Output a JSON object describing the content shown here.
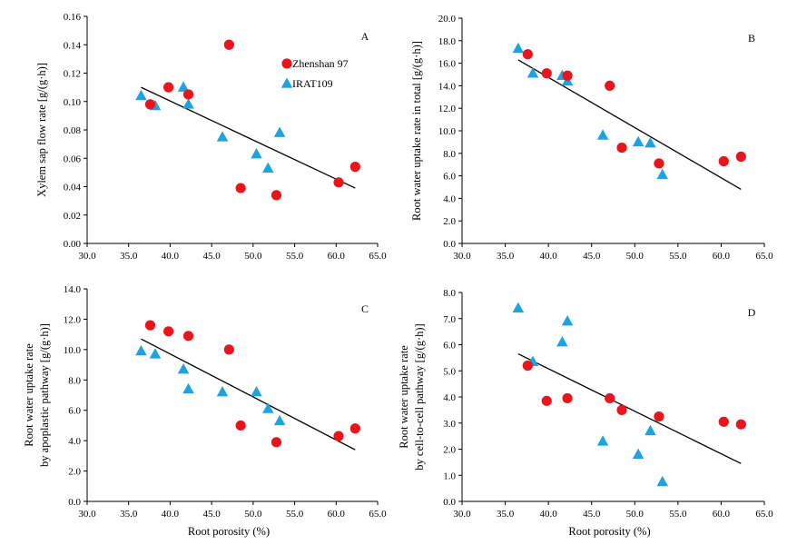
{
  "legend": [
    {
      "name": "Zhenshan 97",
      "marker": "circle",
      "color": "#e8161c"
    },
    {
      "name": "IRAT109",
      "marker": "triangle",
      "color": "#1fa3e0"
    }
  ],
  "chart_data": [
    {
      "type": "scatter",
      "panel_label": "A",
      "xlabel": "",
      "ylabel": [
        "Xylem sap flow rate [g/(g·h)]"
      ],
      "xlim": [
        30,
        65
      ],
      "ylim": [
        0,
        0.16
      ],
      "xticks": [
        "30.0",
        "35.0",
        "40.0",
        "45.0",
        "50.0",
        "55.0",
        "60.0",
        "65.0"
      ],
      "yticks": [
        "0.00",
        "0.02",
        "0.04",
        "0.06",
        "0.08",
        "0.10",
        "0.12",
        "0.14",
        "0.16"
      ],
      "trendline": [
        [
          36.5,
          0.11
        ],
        [
          62.3,
          0.039
        ]
      ],
      "legend_placement": "top-right",
      "series": [
        {
          "name": "Zhenshan 97",
          "points": [
            [
              37.6,
              0.098
            ],
            [
              39.8,
              0.11
            ],
            [
              42.2,
              0.105
            ],
            [
              47.1,
              0.14
            ],
            [
              48.5,
              0.039
            ],
            [
              52.8,
              0.034
            ],
            [
              60.3,
              0.043
            ],
            [
              62.3,
              0.054
            ]
          ]
        },
        {
          "name": "IRAT109",
          "points": [
            [
              36.5,
              0.104
            ],
            [
              38.2,
              0.097
            ],
            [
              41.6,
              0.11
            ],
            [
              42.2,
              0.098
            ],
            [
              46.3,
              0.075
            ],
            [
              50.4,
              0.063
            ],
            [
              51.8,
              0.053
            ],
            [
              53.2,
              0.078
            ]
          ]
        }
      ]
    },
    {
      "type": "scatter",
      "panel_label": "B",
      "xlabel": "",
      "ylabel": [
        "Root water uptake rate in total [g/(g·h)]"
      ],
      "xlim": [
        30,
        65
      ],
      "ylim": [
        0,
        20
      ],
      "xticks": [
        "30.0",
        "35.0",
        "40.0",
        "45.0",
        "50.0",
        "55.0",
        "60.0",
        "65.0"
      ],
      "yticks": [
        "0.0",
        "2.0",
        "4.0",
        "6.0",
        "8.0",
        "10.0",
        "12.0",
        "14.0",
        "16.0",
        "18.0",
        "20.0"
      ],
      "trendline": [
        [
          36.5,
          16.3
        ],
        [
          62.3,
          4.8
        ]
      ],
      "series": [
        {
          "name": "Zhenshan 97",
          "points": [
            [
              37.6,
              16.8
            ],
            [
              39.8,
              15.1
            ],
            [
              42.2,
              14.9
            ],
            [
              47.1,
              14.0
            ],
            [
              48.5,
              8.5
            ],
            [
              52.8,
              7.1
            ],
            [
              60.3,
              7.3
            ],
            [
              62.3,
              7.7
            ]
          ]
        },
        {
          "name": "IRAT109",
          "points": [
            [
              36.5,
              17.3
            ],
            [
              38.2,
              15.1
            ],
            [
              41.6,
              14.9
            ],
            [
              42.2,
              14.4
            ],
            [
              46.3,
              9.6
            ],
            [
              50.4,
              9.0
            ],
            [
              51.8,
              8.9
            ],
            [
              53.2,
              6.1
            ]
          ]
        }
      ]
    },
    {
      "type": "scatter",
      "panel_label": "C",
      "xlabel": "Root porosity (%)",
      "ylabel": [
        "Root water uptake rate",
        "by apoplastic pathway [g/(g·h)]"
      ],
      "xlim": [
        30,
        65
      ],
      "ylim": [
        0,
        14
      ],
      "xticks": [
        "30.0",
        "35.0",
        "40.0",
        "45.0",
        "50.0",
        "55.0",
        "60.0",
        "65.0"
      ],
      "yticks": [
        "0.0",
        "2.0",
        "4.0",
        "6.0",
        "8.0",
        "10.0",
        "12.0",
        "14.0"
      ],
      "trendline": [
        [
          36.5,
          10.7
        ],
        [
          62.3,
          3.4
        ]
      ],
      "series": [
        {
          "name": "Zhenshan 97",
          "points": [
            [
              37.6,
              11.6
            ],
            [
              39.8,
              11.2
            ],
            [
              42.2,
              10.9
            ],
            [
              47.1,
              10.0
            ],
            [
              48.5,
              5.0
            ],
            [
              52.8,
              3.9
            ],
            [
              60.3,
              4.3
            ],
            [
              62.3,
              4.8
            ]
          ]
        },
        {
          "name": "IRAT109",
          "points": [
            [
              36.5,
              9.9
            ],
            [
              38.2,
              9.7
            ],
            [
              41.6,
              8.7
            ],
            [
              42.2,
              7.4
            ],
            [
              46.3,
              7.2
            ],
            [
              50.4,
              7.2
            ],
            [
              51.8,
              6.1
            ],
            [
              53.2,
              5.3
            ]
          ]
        }
      ]
    },
    {
      "type": "scatter",
      "panel_label": "D",
      "xlabel": "Root porosity (%)",
      "ylabel": [
        "Root water uptake rate",
        "by cell-to-cell pathway [g/(g·h)]"
      ],
      "xlim": [
        30,
        65
      ],
      "ylim": [
        0,
        8
      ],
      "xticks": [
        "30.0",
        "35.0",
        "40.0",
        "45.0",
        "50.0",
        "55.0",
        "60.0",
        "65.0"
      ],
      "yticks": [
        "0.0",
        "1.0",
        "2.0",
        "3.0",
        "4.0",
        "5.0",
        "6.0",
        "7.0",
        "8.0"
      ],
      "trendline": [
        [
          36.5,
          5.65
        ],
        [
          62.3,
          1.45
        ]
      ],
      "series": [
        {
          "name": "Zhenshan 97",
          "points": [
            [
              37.6,
              5.2
            ],
            [
              39.8,
              3.85
            ],
            [
              42.2,
              3.95
            ],
            [
              47.1,
              3.95
            ],
            [
              48.5,
              3.5
            ],
            [
              52.8,
              3.25
            ],
            [
              60.3,
              3.05
            ],
            [
              62.3,
              2.95
            ]
          ]
        },
        {
          "name": "IRAT109",
          "points": [
            [
              36.5,
              7.4
            ],
            [
              38.2,
              5.35
            ],
            [
              41.6,
              6.1
            ],
            [
              42.2,
              6.9
            ],
            [
              46.3,
              2.3
            ],
            [
              50.4,
              1.8
            ],
            [
              51.8,
              2.7
            ],
            [
              53.2,
              0.75
            ]
          ]
        }
      ]
    }
  ]
}
